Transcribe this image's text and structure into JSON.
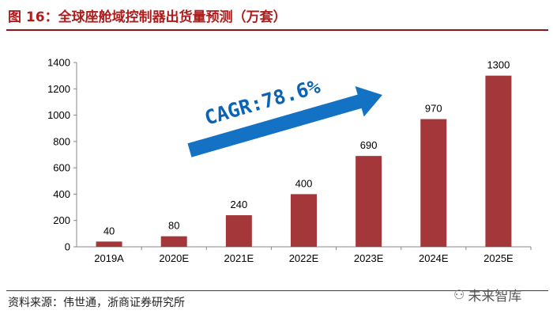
{
  "header": {
    "title": "图 16：全球座舱域控制器出货量预测（万套）"
  },
  "footer": {
    "source": "资料来源：伟世通，浙商证券研究所",
    "watermark": "未来智库",
    "watermark_icon": "wechat-icon"
  },
  "colors": {
    "title": "#b01c1c",
    "bar": "#a3373a",
    "arrow": "#1472c4",
    "annotation": "#0b63b3"
  },
  "chart_data": {
    "type": "bar",
    "title": "全球座舱域控制器出货量预测（万套）",
    "categories": [
      "2019A",
      "2020E",
      "2021E",
      "2022E",
      "2023E",
      "2024E",
      "2025E"
    ],
    "values": [
      40,
      80,
      240,
      400,
      690,
      970,
      1300
    ],
    "ylim": [
      0,
      1400
    ],
    "yticks": [
      0,
      200,
      400,
      600,
      800,
      1000,
      1200,
      1400
    ],
    "xlabel": "",
    "ylabel": "",
    "grid": false,
    "annotation": "CAGR:78.6%"
  }
}
